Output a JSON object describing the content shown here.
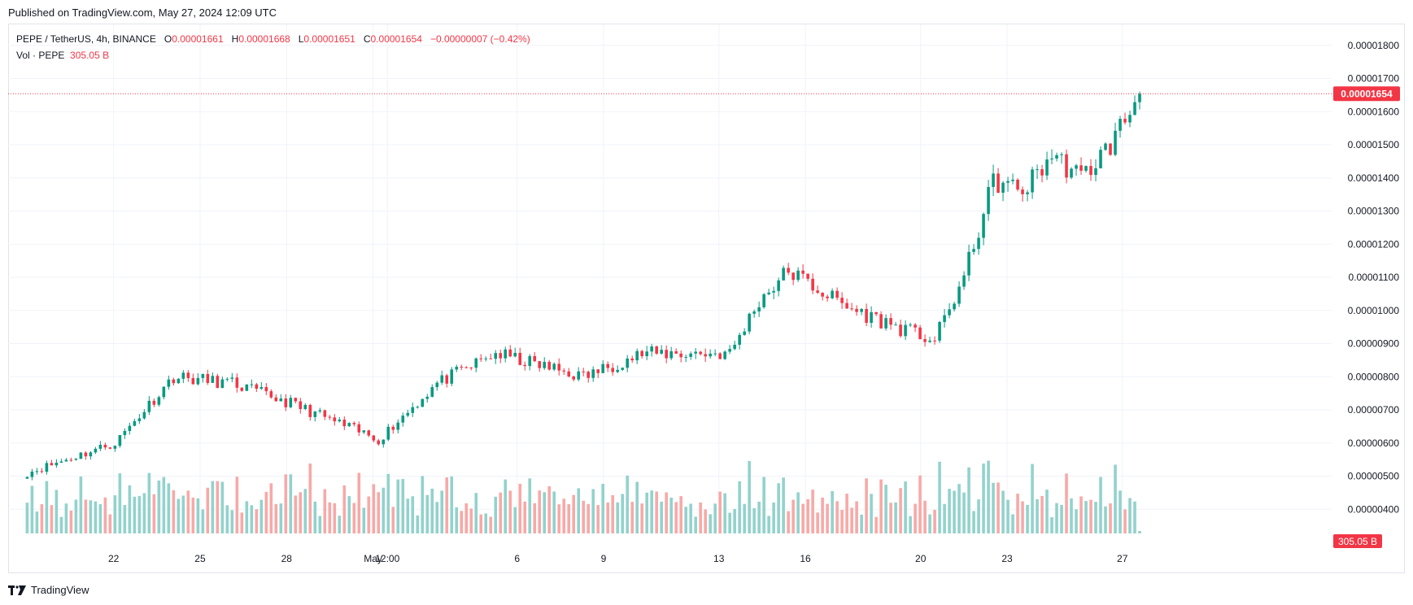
{
  "published": "Published on TradingView.com, May 27, 2024 12:09 UTC",
  "legend": {
    "symbol": "PEPE / TetherUS, 4h, BINANCE",
    "o_label": "O",
    "o": "0.00001661",
    "h_label": "H",
    "h": "0.00001668",
    "l_label": "L",
    "l": "0.00001651",
    "c_label": "C",
    "c": "0.00001654",
    "change": "−0.00000007 (−0.42%)",
    "vol_label": "Vol · PEPE",
    "vol": "305.05 B"
  },
  "footer": {
    "brand": "TradingView",
    "logo_icon": "tradingview-logo-icon"
  },
  "colors": {
    "up": "#089981",
    "down": "#f23645",
    "vol_up": "#92d2cc",
    "vol_down": "#f7a9a7",
    "grid": "#f0f3fa"
  },
  "chart_data": {
    "type": "candlestick",
    "price_axis": {
      "ylim": [
        3.54e-06,
        1.851e-05
      ],
      "ticks": [
        "0.00001800",
        "0.00001700",
        "0.00001600",
        "0.00001500",
        "0.00001400",
        "0.00001300",
        "0.00001200",
        "0.00001100",
        "0.00001000",
        "0.00000900",
        "0.00000800",
        "0.00000700",
        "0.00000600",
        "0.00000500",
        "0.00000400"
      ],
      "last_price_label": "0.00001654",
      "last_volume_label": "305.05 B"
    },
    "x_ticks": [
      "22",
      "25",
      "28",
      "May",
      "12:00",
      "6",
      "9",
      "13",
      "16",
      "20",
      "23",
      "27"
    ],
    "key_closes": [
      [
        "Apr 19",
        5.1e-06
      ],
      [
        "Apr 22",
        6e-06
      ],
      [
        "Apr 24",
        8e-06
      ],
      [
        "Apr 26",
        7.8e-06
      ],
      [
        "Apr 28",
        7.2e-06
      ],
      [
        "May 1",
        6.1e-06
      ],
      [
        "May 3",
        7.8e-06
      ],
      [
        "May 5",
        8.7e-06
      ],
      [
        "May 8",
        8e-06
      ],
      [
        "May 10",
        8.7e-06
      ],
      [
        "May 13",
        8.7e-06
      ],
      [
        "May 14",
        1.03e-05
      ],
      [
        "May 15",
        1.12e-05
      ],
      [
        "May 17",
        1.01e-05
      ],
      [
        "May 19",
        9.4e-06
      ],
      [
        "May 20",
        9.1e-06
      ],
      [
        "May 21",
        1.1e-05
      ],
      [
        "May 22",
        1.39e-05
      ],
      [
        "May 23",
        1.36e-05
      ],
      [
        "May 24",
        1.47e-05
      ],
      [
        "May 25",
        1.4e-05
      ],
      [
        "May 26",
        1.5e-05
      ],
      [
        "May 27",
        1.654e-05
      ]
    ],
    "volume_unit": "B",
    "last_volume": 305.05
  }
}
